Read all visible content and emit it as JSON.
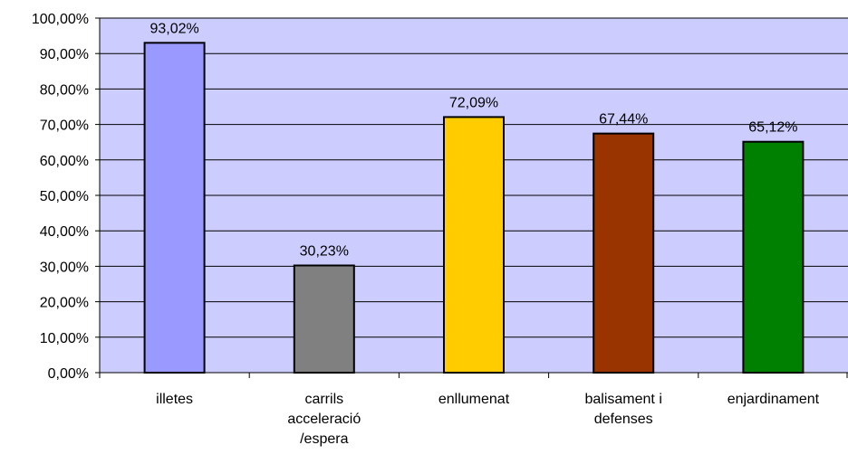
{
  "chart_data": {
    "type": "bar",
    "title": "",
    "xlabel": "",
    "ylabel": "",
    "categories": [
      [
        "illetes"
      ],
      [
        "carrils",
        "acceleració",
        "/espera"
      ],
      [
        "enllumenat"
      ],
      [
        "balisament i",
        "defenses"
      ],
      [
        "enjardinament"
      ]
    ],
    "values": [
      93.02,
      30.23,
      72.09,
      67.44,
      65.12
    ],
    "data_labels": [
      "93,02%",
      "30,23%",
      "72,09%",
      "67,44%",
      "65,12%"
    ],
    "colors": [
      "#9999ff",
      "#808080",
      "#ffcc00",
      "#993300",
      "#008000"
    ],
    "ylim": [
      0,
      100
    ],
    "yticks": [
      0,
      10,
      20,
      30,
      40,
      50,
      60,
      70,
      80,
      90,
      100
    ],
    "ytick_labels": [
      "0,00%",
      "10,00%",
      "20,00%",
      "30,00%",
      "40,00%",
      "50,00%",
      "60,00%",
      "70,00%",
      "80,00%",
      "90,00%",
      "100,00%"
    ],
    "plot_background": "#ccccff",
    "grid": true,
    "legend": "none"
  }
}
